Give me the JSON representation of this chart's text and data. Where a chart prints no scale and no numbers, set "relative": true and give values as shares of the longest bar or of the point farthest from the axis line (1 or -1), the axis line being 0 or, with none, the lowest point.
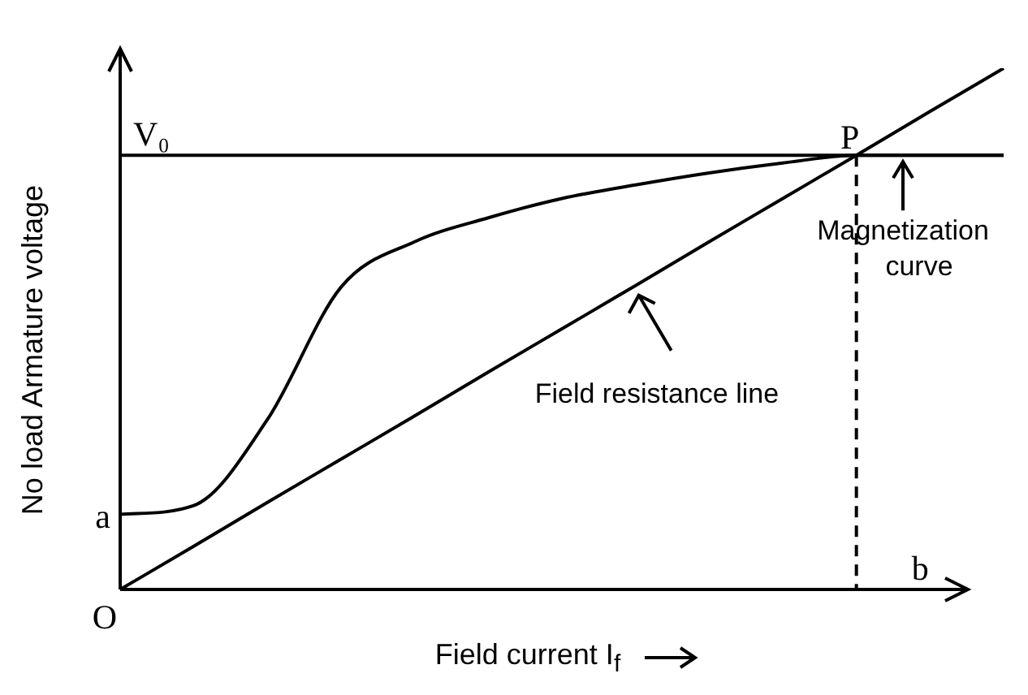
{
  "chart_data": {
    "type": "line",
    "relative": true,
    "xlabel": "Field current I$_{f}$",
    "ylabel": "No load Armature voltage",
    "marker": "none",
    "categories": [
      null,
      null,
      null,
      null,
      null,
      null,
      null,
      null,
      null,
      null,
      null,
      null,
      null
    ],
    "series": [
      {
        "color": "#000000",
        "values": [
          0.144,
          0.161,
          0.326,
          0.58,
          0.667,
          0.713,
          0.75,
          0.776,
          0.799,
          0.818,
          0.833,
          0.833,
          0.833
        ]
      },
      {
        "color": "#000000",
        "values": [
          0,
          0.083,
          0.167,
          0.25,
          0.333,
          0.417,
          0.5,
          0.583,
          0.667,
          0.75,
          0.833,
          0.917,
          1
        ]
      },
      {
        "color": "#000000",
        "values": [
          0.833,
          0.833,
          0.833,
          0.833,
          0.833,
          0.833,
          0.833,
          0.833,
          0.833,
          0.833,
          0.833,
          0.833,
          0.833
        ]
      }
    ],
    "annotations": [
      "V₀",
      "P",
      "a",
      "O",
      "b",
      "Magnetization curve",
      "Field resistance line"
    ]
  }
}
